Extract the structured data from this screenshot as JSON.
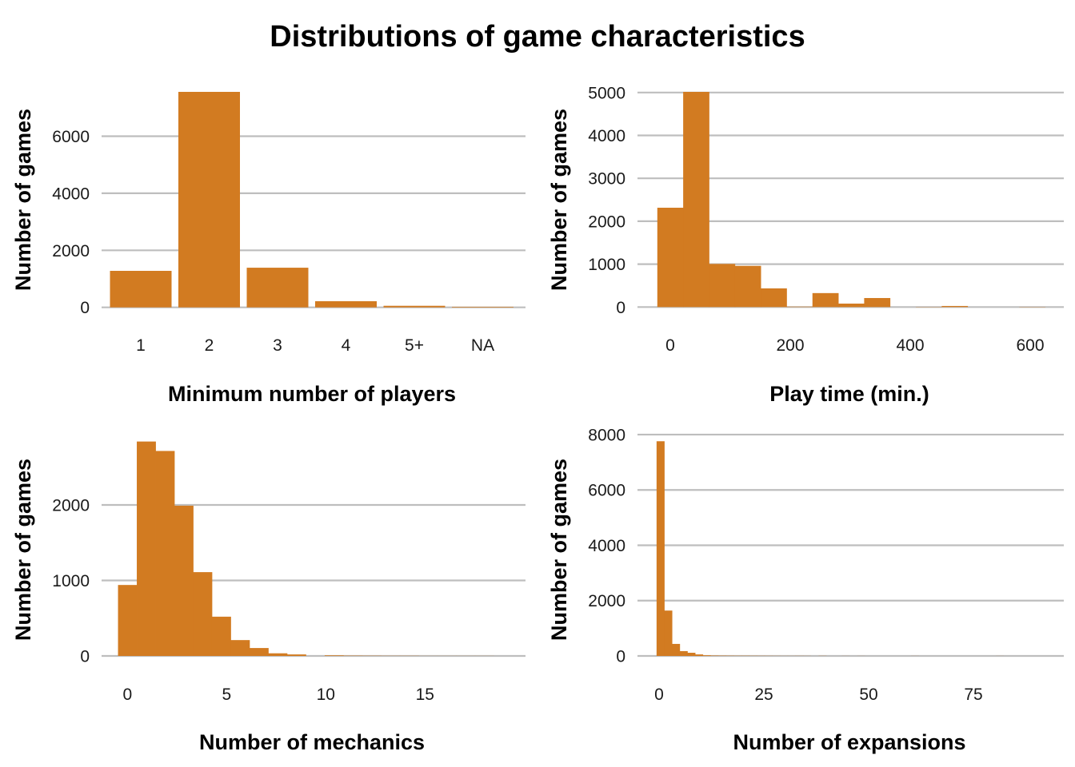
{
  "title": "Distributions of game characteristics",
  "colors": {
    "bar": "#d27b21",
    "grid": "#bebebe"
  },
  "chart_data": [
    {
      "type": "bar",
      "title": "",
      "xlabel": "Minimum number of players",
      "ylabel": "Number of games",
      "categories": [
        "1",
        "2",
        "3",
        "4",
        "5+",
        "NA"
      ],
      "values": [
        1280,
        7555,
        1390,
        215,
        55,
        20
      ],
      "yticks": [
        0,
        2000,
        4000,
        6000
      ],
      "ytick_labels": [
        "0",
        "2000",
        "4000",
        "6000"
      ],
      "ylim": [
        0,
        7600
      ],
      "grid": "horizontal"
    },
    {
      "type": "bar",
      "subtype": "histogram",
      "title": "",
      "xlabel": "Play time (min.)",
      "ylabel": "Number of games",
      "bin_start": -21.6,
      "bin_width": 43.1,
      "values": [
        2315,
        5015,
        1005,
        960,
        435,
        10,
        325,
        80,
        210,
        0,
        5,
        25,
        0,
        0,
        5
      ],
      "xticks": [
        0,
        200,
        400,
        600
      ],
      "xtick_labels": [
        "0",
        "200",
        "400",
        "600"
      ],
      "yticks": [
        0,
        1000,
        2000,
        3000,
        4000,
        5000
      ],
      "ytick_labels": [
        "0",
        "1000",
        "2000",
        "3000",
        "4000",
        "5000"
      ],
      "ylim": [
        0,
        5050
      ],
      "grid": "horizontal"
    },
    {
      "type": "bar",
      "subtype": "histogram",
      "title": "",
      "xlabel": "Number of mechanics",
      "ylabel": "Number of games",
      "bin_start": -0.474,
      "bin_width": 0.947,
      "values": [
        940,
        2840,
        2715,
        1990,
        1110,
        520,
        210,
        105,
        35,
        20,
        0,
        8,
        4,
        3,
        2,
        2,
        1,
        1,
        1,
        1
      ],
      "xticks": [
        0,
        5,
        10,
        15
      ],
      "xtick_labels": [
        "0",
        "5",
        "10",
        "15"
      ],
      "yticks": [
        0,
        1000,
        2000
      ],
      "ytick_labels": [
        "0",
        "1000",
        "2000"
      ],
      "ylim": [
        0,
        2900
      ],
      "grid": "horizontal"
    },
    {
      "type": "bar",
      "subtype": "histogram",
      "title": "",
      "xlabel": "Number of expansions",
      "ylabel": "Number of games",
      "bin_start": -0.6,
      "bin_width": 1.84,
      "values": [
        7760,
        1640,
        435,
        175,
        115,
        55,
        25,
        15,
        12,
        10,
        8,
        8,
        7,
        6,
        5,
        4,
        3,
        3,
        4,
        3,
        0,
        4,
        0,
        0,
        2,
        0,
        2,
        0,
        0,
        0,
        0,
        0,
        0,
        2,
        0,
        0,
        0,
        0,
        0,
        0,
        0,
        0,
        0,
        0,
        2,
        0,
        0,
        0,
        0,
        0
      ],
      "xticks": [
        0,
        25,
        50,
        75
      ],
      "xtick_labels": [
        "0",
        "25",
        "50",
        "75"
      ],
      "yticks": [
        0,
        2000,
        4000,
        6000,
        8000
      ],
      "ytick_labels": [
        "0",
        "2000",
        "4000",
        "6000",
        "8000"
      ],
      "ylim": [
        0,
        8000
      ],
      "grid": "horizontal"
    }
  ]
}
